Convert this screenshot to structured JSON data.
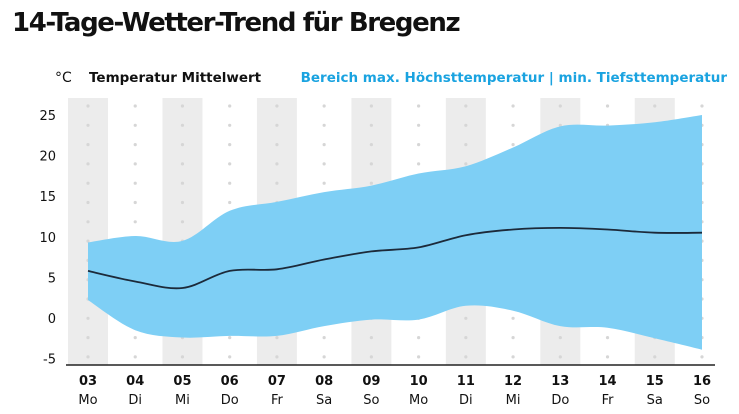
{
  "chart_data": {
    "type": "area",
    "title": "14-Tage-Wetter-Trend für Bregenz",
    "unit": "°C",
    "legend": {
      "mean_label": "Temperatur Mittelwert",
      "range_label": "Bereich max. Höchsttemperatur | min. Tiefsttemperatur",
      "placement": "top"
    },
    "categories": [
      "03",
      "04",
      "05",
      "06",
      "07",
      "08",
      "09",
      "10",
      "11",
      "12",
      "13",
      "14",
      "15",
      "16"
    ],
    "weekdays": [
      "Mo",
      "Di",
      "Mi",
      "Do",
      "Fr",
      "Sa",
      "So",
      "Mo",
      "Di",
      "Mi",
      "Do",
      "Fr",
      "Sa",
      "So"
    ],
    "yticks": [
      25,
      20,
      15,
      10,
      5,
      0,
      -5
    ],
    "ylim": [
      -5.5,
      26.5
    ],
    "grid": true,
    "series": [
      {
        "name": "Temperatur Mittelwert",
        "values": [
          5.8,
          4.5,
          3.7,
          5.8,
          6.0,
          7.2,
          8.2,
          8.7,
          10.2,
          10.9,
          11.1,
          10.9,
          10.5,
          10.5
        ]
      },
      {
        "name": "max. Höchsttemperatur",
        "values": [
          9.3,
          10.1,
          9.5,
          13.2,
          14.3,
          15.5,
          16.3,
          17.8,
          18.7,
          21.0,
          23.6,
          23.7,
          24.1,
          25.0
        ]
      },
      {
        "name": "min. Tiefsttemperatur",
        "values": [
          2.2,
          -1.5,
          -2.4,
          -2.2,
          -2.2,
          -1.0,
          -0.2,
          -0.2,
          1.5,
          0.9,
          -1.0,
          -1.2,
          -2.5,
          -3.9
        ]
      }
    ],
    "colors": {
      "band": "#7ecff5",
      "line": "#1c2a3a",
      "stripe": "#ececec",
      "dot": "#d6d6d6",
      "accent": "#1aa3e0"
    }
  }
}
